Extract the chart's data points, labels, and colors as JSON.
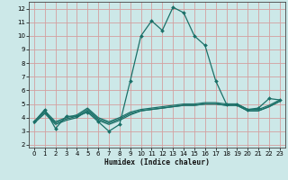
{
  "xlabel": "Humidex (Indice chaleur)",
  "bg_color": "#cce8e8",
  "grid_color": "#d4a0a0",
  "line_color": "#1a7068",
  "xlim": [
    -0.5,
    23.5
  ],
  "ylim": [
    1.8,
    12.5
  ],
  "xticks": [
    0,
    1,
    2,
    3,
    4,
    5,
    6,
    7,
    8,
    9,
    10,
    11,
    12,
    13,
    14,
    15,
    16,
    17,
    18,
    19,
    20,
    21,
    22,
    23
  ],
  "yticks": [
    2,
    3,
    4,
    5,
    6,
    7,
    8,
    9,
    10,
    11,
    12
  ],
  "line1_x": [
    0,
    1,
    2,
    3,
    4,
    5,
    6,
    7,
    8,
    9,
    10,
    11,
    12,
    13,
    14,
    15,
    16,
    17,
    18,
    19,
    20,
    21,
    22,
    23
  ],
  "line1_y": [
    3.7,
    4.6,
    3.2,
    4.1,
    4.1,
    4.4,
    3.7,
    3.0,
    3.5,
    6.7,
    10.0,
    11.1,
    10.4,
    12.1,
    11.7,
    10.0,
    9.3,
    6.7,
    5.0,
    5.0,
    4.6,
    4.7,
    5.4,
    5.3
  ],
  "line2_x": [
    0,
    1,
    2,
    3,
    4,
    5,
    6,
    7,
    8,
    9,
    10,
    11,
    12,
    13,
    14,
    15,
    16,
    17,
    18,
    19,
    20,
    21,
    22,
    23
  ],
  "line2_y": [
    3.7,
    4.5,
    3.7,
    4.0,
    4.2,
    4.7,
    4.0,
    3.7,
    4.0,
    4.4,
    4.6,
    4.7,
    4.8,
    4.9,
    5.0,
    5.0,
    5.1,
    5.1,
    5.0,
    5.0,
    4.6,
    4.6,
    4.9,
    5.3
  ],
  "line3_x": [
    0,
    1,
    2,
    3,
    4,
    5,
    6,
    7,
    8,
    9,
    10,
    11,
    12,
    13,
    14,
    15,
    16,
    17,
    18,
    19,
    20,
    21,
    22,
    23
  ],
  "line3_y": [
    3.6,
    4.4,
    3.6,
    3.9,
    4.1,
    4.6,
    3.9,
    3.6,
    3.9,
    4.3,
    4.5,
    4.6,
    4.7,
    4.8,
    4.9,
    4.9,
    5.0,
    5.0,
    4.9,
    4.9,
    4.5,
    4.5,
    4.8,
    5.2
  ],
  "line4_x": [
    0,
    1,
    2,
    3,
    4,
    5,
    6,
    7,
    8,
    9,
    10,
    11,
    12,
    13,
    14,
    15,
    16,
    17,
    18,
    19,
    20,
    21,
    22,
    23
  ],
  "line4_y": [
    3.6,
    4.3,
    3.5,
    3.8,
    4.0,
    4.5,
    3.8,
    3.5,
    3.8,
    4.2,
    4.5,
    4.6,
    4.7,
    4.8,
    4.9,
    4.9,
    5.0,
    5.0,
    4.9,
    4.9,
    4.5,
    4.5,
    4.8,
    5.2
  ]
}
